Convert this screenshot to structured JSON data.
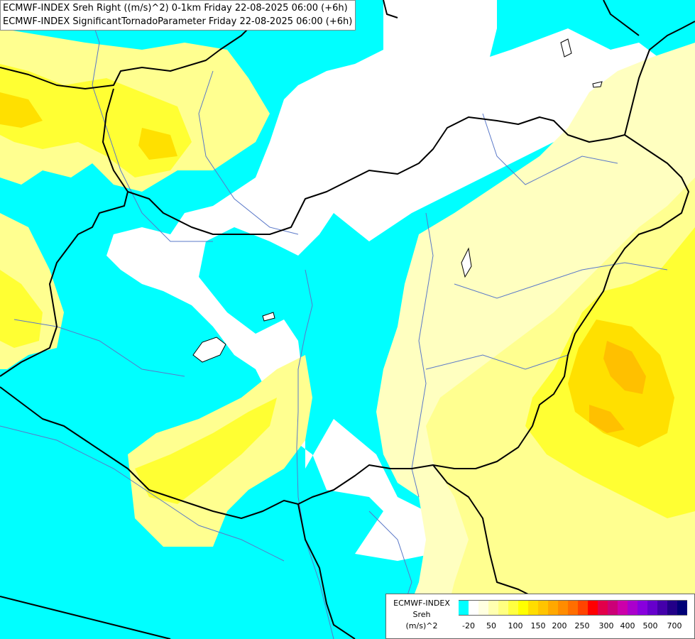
{
  "titles": {
    "line1": "ECMWF-INDEX Sreh Right ((m/s)^2) 0-1km Friday 22-08-2025 06:00 (+6h)",
    "line2": "ECMWF-INDEX SignificantTornadoParameter Friday 22-08-2025 06:00 (+6h)"
  },
  "legend": {
    "title_line1": "ECMWF-INDEX",
    "title_line2": "Sreh",
    "title_line3": "(m/s)^2",
    "colors": [
      "#00ffff",
      "#ffffff",
      "#ffffe0",
      "#ffffb0",
      "#ffff80",
      "#ffff40",
      "#ffff00",
      "#ffdd00",
      "#ffc400",
      "#ffa800",
      "#ff8c00",
      "#ff6e00",
      "#ff4400",
      "#ff0000",
      "#e2004a",
      "#cc0077",
      "#cc00aa",
      "#aa00cc",
      "#8800dd",
      "#6600cc",
      "#4400aa",
      "#220088",
      "#000077"
    ],
    "ticks": [
      "-20",
      "50",
      "100",
      "150",
      "200",
      "250",
      "300",
      "400",
      "500",
      "700"
    ]
  },
  "palette": {
    "cyan": "#00ffff",
    "white": "#ffffff",
    "pale_yellow": "#ffffc0",
    "light_yellow": "#ffff90",
    "yellow": "#ffff33",
    "gold": "#ffe000",
    "orange": "#ffc000",
    "border": "#000000",
    "river": "#5a78c8"
  }
}
